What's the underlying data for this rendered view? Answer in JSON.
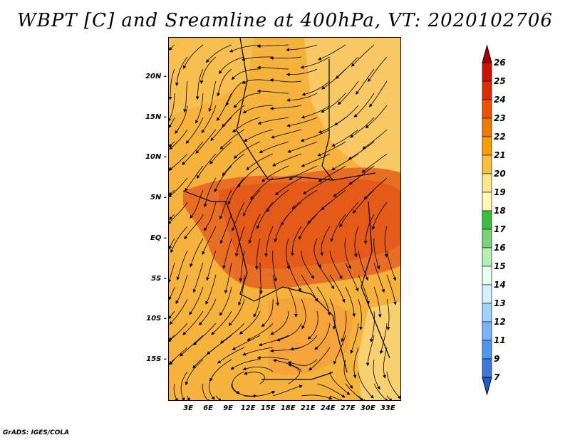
{
  "title": "WBPT [C] and Sreamline at 400hPa, VT: 2020102706",
  "footer": "GrADS: IGES/COLA",
  "axes": {
    "lat_labels": [
      "20N",
      "15N",
      "10N",
      "5N",
      "EQ",
      "5S",
      "10S",
      "15S"
    ],
    "lat_values": [
      20,
      15,
      10,
      5,
      0,
      -5,
      -10,
      -15
    ],
    "lon_labels": [
      "3E",
      "6E",
      "9E",
      "12E",
      "15E",
      "18E",
      "21E",
      "24E",
      "27E",
      "30E",
      "33E"
    ],
    "lon_values": [
      3,
      6,
      9,
      12,
      15,
      18,
      21,
      24,
      27,
      30,
      33
    ],
    "lat_range": [
      -20,
      25
    ],
    "lon_range": [
      0,
      35
    ]
  },
  "colorbar": {
    "levels": [
      "26",
      "25",
      "24",
      "23",
      "22",
      "21",
      "20",
      "19",
      "18",
      "17",
      "16",
      "15",
      "14",
      "13",
      "12",
      "11",
      "9",
      "7"
    ],
    "colors": [
      "#a50000",
      "#c81400",
      "#dc2d00",
      "#f05000",
      "#f07800",
      "#f5a000",
      "#f8be3c",
      "#fae68c",
      "#fffab4",
      "#3cbe3c",
      "#78d278",
      "#b4f0b4",
      "#e6fff0",
      "#d2f0ff",
      "#a0d2ff",
      "#78b4ff",
      "#5096f0",
      "#3c78dc",
      "#1e5ad2"
    ]
  },
  "colors": {
    "warm_high": "#e8641e",
    "warm_mid": "#f5a000",
    "warm_low": "#f8c864",
    "cool_edge": "#fae68c"
  }
}
